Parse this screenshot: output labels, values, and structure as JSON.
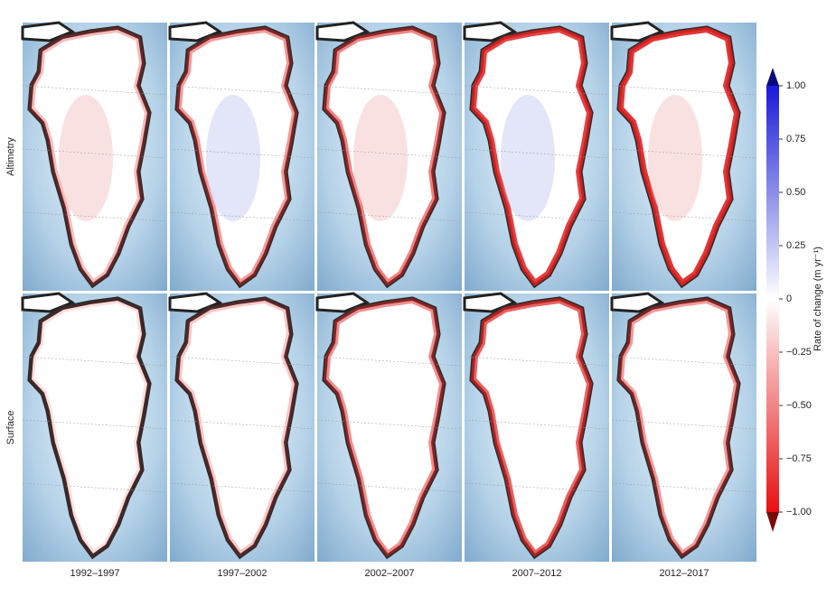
{
  "rows": [
    {
      "label": "Altimetry"
    },
    {
      "label": "Surface"
    }
  ],
  "columns": [
    "1992–1997",
    "1997–2002",
    "2002–2007",
    "2007–2012",
    "2012–2017"
  ],
  "colorbar": {
    "label": "Rate of change (m yr⁻¹)",
    "lim": [
      -1,
      1
    ],
    "ticks": [
      {
        "value": 1,
        "label": "1.00"
      },
      {
        "value": 0.75,
        "label": "0.75"
      },
      {
        "value": 0.5,
        "label": "0.50"
      },
      {
        "value": 0.25,
        "label": "0.25"
      },
      0,
      {
        "value": -0.25,
        "label": "−0.25"
      },
      {
        "value": -0.5,
        "label": "−0.50"
      },
      {
        "value": -0.75,
        "label": "−0.75"
      },
      {
        "value": -1,
        "label": "−1.00"
      }
    ]
  }
}
